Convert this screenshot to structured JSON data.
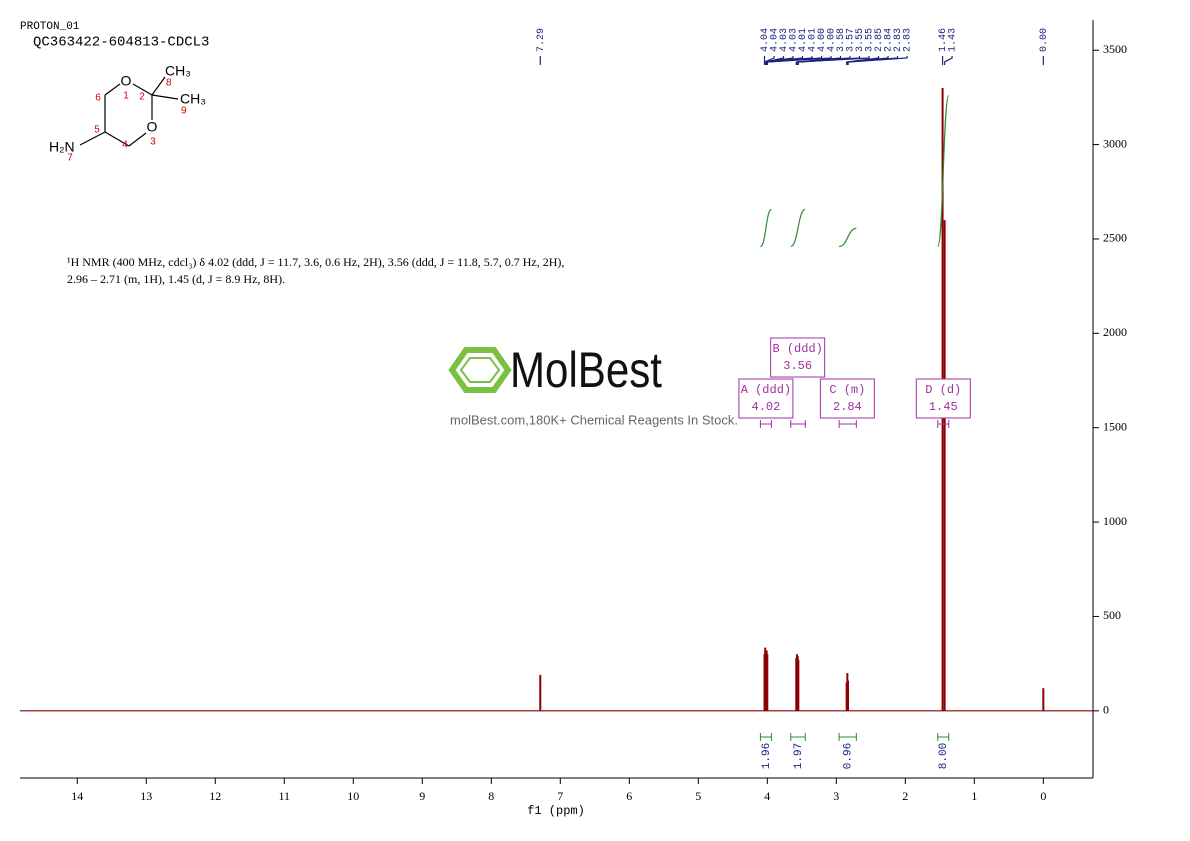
{
  "header": {
    "experiment": "PROTON_01",
    "sample": "QC363422-604813-CDCL3"
  },
  "structure": {
    "atoms": [
      "O",
      "1",
      "6",
      "2",
      "CH₃",
      "8",
      "CH₃",
      "9",
      "5",
      "O",
      "3",
      "4",
      "H₂N",
      "7"
    ]
  },
  "description": [
    "¹H NMR (400 MHz, cdcl₃) δ 4.02 (ddd, J = 11.7, 3.6, 0.6 Hz, 2H), 3.56 (ddd, J = 11.8, 5.7, 0.7 Hz, 2H),",
    "2.96 – 2.71 (m, 1H), 1.45 (d, J = 8.9 Hz, 8H)."
  ],
  "watermark": {
    "brand": "MolBest",
    "tagline": "molBest.com,180K+ Chemical Reagents In Stock."
  },
  "chart_data": {
    "type": "nmr",
    "x_label": "f1 (ppm)",
    "color": "#8b0000",
    "xlim": [
      14.83,
      -0.72
    ],
    "xticks": [
      14,
      13,
      12,
      11,
      10,
      9,
      8,
      7,
      6,
      5,
      4,
      3,
      2,
      1,
      0
    ],
    "ylim": [
      -340,
      3660
    ],
    "yticks": [
      0,
      500,
      1000,
      1500,
      2000,
      2500,
      3000,
      3500
    ],
    "x": [
      7.29,
      4.04,
      4.03,
      4.01,
      4.0,
      3.58,
      3.57,
      3.56,
      3.55,
      2.85,
      2.84,
      2.83,
      1.46,
      1.43,
      0.0
    ],
    "values": [
      190,
      300,
      335,
      320,
      300,
      280,
      300,
      290,
      270,
      150,
      200,
      160,
      3300,
      2600,
      120
    ],
    "peak_labels": [
      7.29,
      4.04,
      4.04,
      4.03,
      4.03,
      4.01,
      4.01,
      {
        "value": 4,
        "label": "4.00"
      },
      {
        "value": 4,
        "label": "4.00"
      },
      3.58,
      3.57,
      3.55,
      3.55,
      2.85,
      2.84,
      2.83,
      2.83,
      1.46,
      1.43,
      {
        "value": 0,
        "label": "0.00"
      }
    ],
    "multiplets": [
      {
        "label": "A (ddd)",
        "shift": 4.02,
        "range": [
          4.1,
          3.94
        ]
      },
      {
        "label": "B (ddd)",
        "shift": 3.56,
        "range": [
          3.66,
          3.45
        ]
      },
      {
        "label": "C (m)",
        "shift": 2.84,
        "range": [
          2.96,
          2.71
        ]
      },
      {
        "label": "D (d)",
        "shift": 1.45,
        "range": [
          1.53,
          1.37
        ]
      }
    ],
    "integrals": [
      {
        "value": 1.96,
        "range": [
          4.1,
          3.94
        ]
      },
      {
        "value": 1.97,
        "range": [
          3.66,
          3.45
        ]
      },
      {
        "value": 0.96,
        "range": [
          2.96,
          2.71
        ]
      },
      {
        "value": 8,
        "label": "8.00",
        "range": [
          1.53,
          1.37
        ]
      }
    ]
  }
}
